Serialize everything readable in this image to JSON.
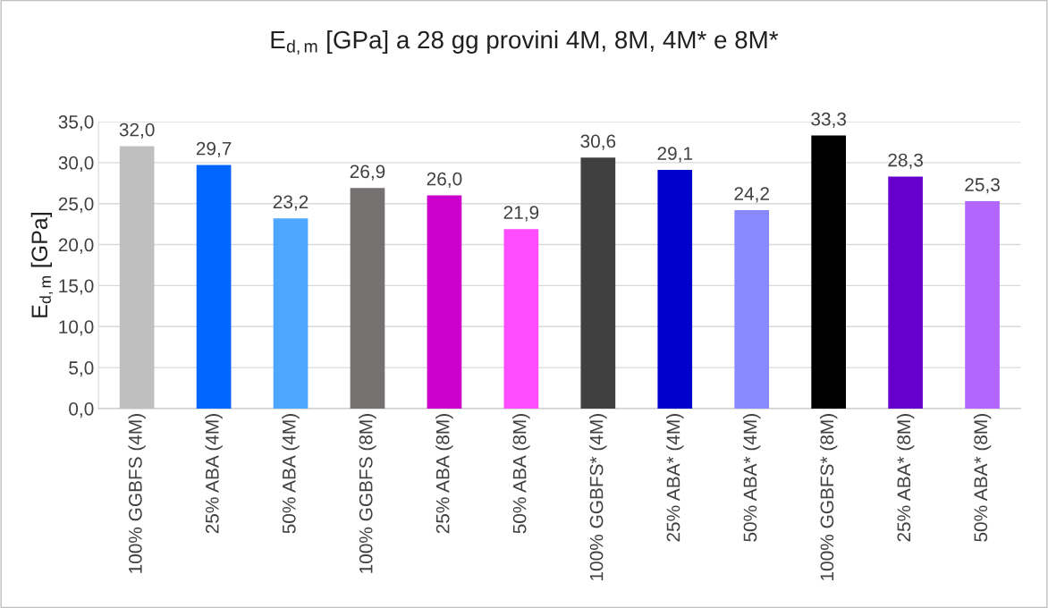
{
  "chart_data": {
    "type": "bar",
    "title": "E$_{d,m}$ [GPa] a 28 gg provini 4M, 8M, 4M* e 8M*",
    "ylabel": "E$_{d,m}$ [GPa]",
    "categories": [
      "100% GGBFS (4M)",
      "25% ABA (4M)",
      "50% ABA (4M)",
      "100% GGBFS (8M)",
      "25% ABA (8M)",
      "50% ABA (8M)",
      "100% GGBFS* (4M)",
      "25% ABA* (4M)",
      "50% ABA* (4M)",
      "100% GGBFS* (8M)",
      "25% ABA* (8M)",
      "50% ABA* (8M)"
    ],
    "values": [
      32.0,
      29.7,
      23.2,
      26.9,
      26.0,
      21.9,
      30.6,
      29.1,
      24.2,
      33.3,
      28.3,
      25.3
    ],
    "value_labels": [
      "32,0",
      "29,7",
      "23,2",
      "26,9",
      "26,0",
      "21,9",
      "30,6",
      "29,1",
      "24,2",
      "33,3",
      "28,3",
      "25,3"
    ],
    "colors": [
      "#bfbfbf",
      "#0066ff",
      "#4da6ff",
      "#767171",
      "#cc00cc",
      "#ff4dff",
      "#404040",
      "#0000cc",
      "#8888ff",
      "#000000",
      "#6600cc",
      "#b266ff"
    ],
    "ylim": [
      0,
      35
    ],
    "yticks": [
      {
        "value": 0,
        "label": "0,0"
      },
      {
        "value": 5,
        "label": "5,0"
      },
      {
        "value": 10,
        "label": "10,0"
      },
      {
        "value": 15,
        "label": "15,0"
      },
      {
        "value": 20,
        "label": "20,0"
      },
      {
        "value": 25,
        "label": "25,0"
      },
      {
        "value": 30,
        "label": "30,0"
      },
      {
        "value": 35,
        "label": "35,0"
      }
    ],
    "grid": "y"
  }
}
